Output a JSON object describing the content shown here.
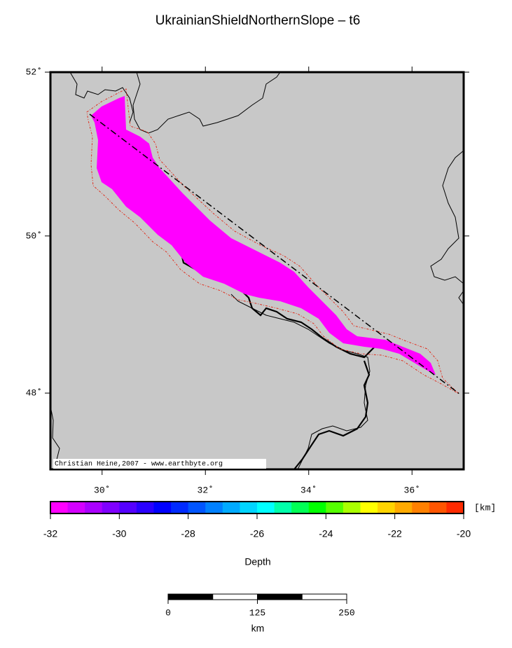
{
  "title": "UkrainianShieldNorthernSlope – t6",
  "map": {
    "lon_range": [
      29,
      37
    ],
    "lat_range": [
      47,
      52
    ],
    "lon_ticks": [
      {
        "value": 30,
        "label": "30˚"
      },
      {
        "value": 32,
        "label": "32˚"
      },
      {
        "value": 34,
        "label": "34˚"
      },
      {
        "value": 36,
        "label": "36˚"
      }
    ],
    "lat_ticks": [
      {
        "value": 48,
        "label": "48˚"
      },
      {
        "value": 50,
        "label": "50˚"
      },
      {
        "value": 52,
        "label": "52˚"
      }
    ],
    "credit": "Christian Heine,2007 - www.earthbyte.org"
  },
  "colorbar": {
    "range": [
      -32,
      -20
    ],
    "ticks": [
      -32,
      -30,
      -28,
      -26,
      -24,
      -22,
      -20
    ],
    "unit": "[km]",
    "label": "Depth",
    "colors": [
      "#ff00ff",
      "#d400ff",
      "#aa00ff",
      "#7f00ff",
      "#5500ff",
      "#2a00ff",
      "#0000ff",
      "#002aff",
      "#0055ff",
      "#0080ff",
      "#00aaff",
      "#00d4ff",
      "#00ffff",
      "#00ffaa",
      "#00ff55",
      "#00ff00",
      "#55ff00",
      "#aaff00",
      "#ffff00",
      "#ffd400",
      "#ffaa00",
      "#ff8000",
      "#ff5500",
      "#ff2a00"
    ]
  },
  "scale_bar": {
    "ticks": [
      0,
      125,
      250
    ],
    "unit": "km"
  }
}
